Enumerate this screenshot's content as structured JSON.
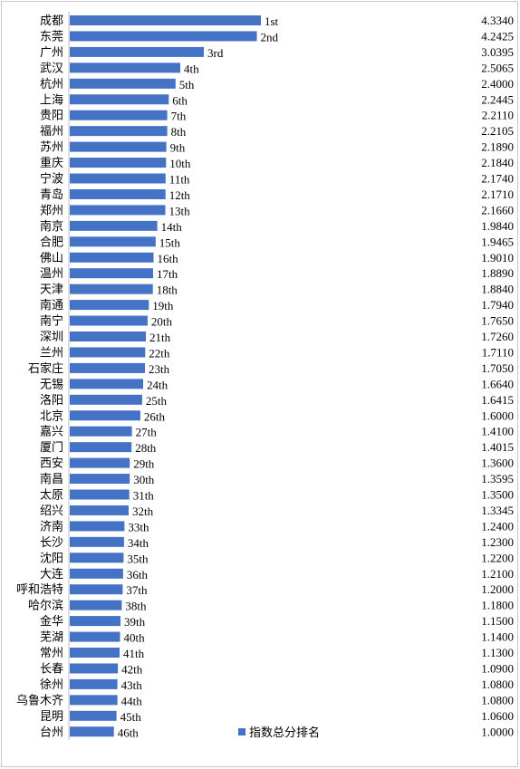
{
  "chart_data": {
    "type": "bar",
    "orientation": "horizontal",
    "categories": [
      "成都",
      "东莞",
      "广州",
      "武汉",
      "杭州",
      "上海",
      "贵阳",
      "福州",
      "苏州",
      "重庆",
      "宁波",
      "青岛",
      "郑州",
      "南京",
      "合肥",
      "佛山",
      "温州",
      "天津",
      "南通",
      "南宁",
      "深圳",
      "兰州",
      "石家庄",
      "无锡",
      "洛阳",
      "北京",
      "嘉兴",
      "厦门",
      "西安",
      "南昌",
      "太原",
      "绍兴",
      "济南",
      "长沙",
      "沈阳",
      "大连",
      "呼和浩特",
      "哈尔滨",
      "金华",
      "芜湖",
      "常州",
      "长春",
      "徐州",
      "乌鲁木齐",
      "昆明",
      "台州"
    ],
    "ranks": [
      "1st",
      "2nd",
      "3rd",
      "4th",
      "5th",
      "6th",
      "7th",
      "8th",
      "9th",
      "10th",
      "11th",
      "12th",
      "13th",
      "14th",
      "15th",
      "16th",
      "17th",
      "18th",
      "19th",
      "20th",
      "21th",
      "22th",
      "23th",
      "24th",
      "25th",
      "26th",
      "27th",
      "28th",
      "29th",
      "30th",
      "31th",
      "32th",
      "33th",
      "34th",
      "35th",
      "36th",
      "37th",
      "38th",
      "39th",
      "40th",
      "41th",
      "42th",
      "43th",
      "44th",
      "45th",
      "46th"
    ],
    "series": [
      {
        "name": "指数总分排名",
        "values": [
          4.334,
          4.2425,
          3.0395,
          2.5065,
          2.4,
          2.2445,
          2.211,
          2.2105,
          2.189,
          2.184,
          2.174,
          2.171,
          2.166,
          1.984,
          1.9465,
          1.901,
          1.889,
          1.884,
          1.794,
          1.765,
          1.726,
          1.711,
          1.705,
          1.664,
          1.6415,
          1.6,
          1.41,
          1.4015,
          1.36,
          1.3595,
          1.35,
          1.3345,
          1.24,
          1.23,
          1.22,
          1.21,
          1.2,
          1.18,
          1.15,
          1.14,
          1.13,
          1.09,
          1.08,
          1.08,
          1.06,
          1.0
        ],
        "value_labels": [
          "4.3340",
          "4.2425",
          "3.0395",
          "2.5065",
          "2.4000",
          "2.2445",
          "2.2110",
          "2.2105",
          "2.1890",
          "2.1840",
          "2.1740",
          "2.1710",
          "2.1660",
          "1.9840",
          "1.9465",
          "1.9010",
          "1.8890",
          "1.8840",
          "1.7940",
          "1.7650",
          "1.7260",
          "1.7110",
          "1.7050",
          "1.6640",
          "1.6415",
          "1.6000",
          "1.4100",
          "1.4015",
          "1.3600",
          "1.3595",
          "1.3500",
          "1.3345",
          "1.2400",
          "1.2300",
          "1.2200",
          "1.2100",
          "1.2000",
          "1.1800",
          "1.1500",
          "1.1400",
          "1.1300",
          "1.0900",
          "1.0800",
          "1.0800",
          "1.0600",
          "1.0000"
        ],
        "color": "#4472C4"
      }
    ],
    "legend": {
      "label": "指数总分排名",
      "position": "bottom-center"
    },
    "grid": false
  }
}
